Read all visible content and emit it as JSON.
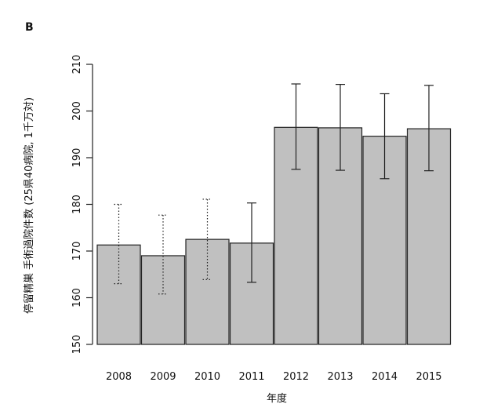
{
  "chart_data": {
    "type": "bar",
    "panel_label": "B",
    "xlabel": "年度",
    "ylabel": "停留精巣 手術過院件数 (25県40病院, 1千万対)",
    "ylim": [
      150,
      210
    ],
    "yticks": [
      150,
      160,
      170,
      180,
      190,
      200,
      210
    ],
    "categories": [
      "2008",
      "2009",
      "2010",
      "2011",
      "2012",
      "2013",
      "2014",
      "2015"
    ],
    "values": [
      171.3,
      169.0,
      172.5,
      171.7,
      196.5,
      196.4,
      194.6,
      196.2
    ],
    "error_low": [
      163.0,
      160.8,
      163.9,
      163.3,
      187.5,
      187.3,
      185.5,
      187.2
    ],
    "error_high": [
      180.0,
      177.7,
      181.1,
      180.3,
      205.8,
      205.7,
      203.7,
      205.5
    ],
    "error_style": [
      "dotted",
      "dotted",
      "dotted",
      "solid",
      "solid",
      "solid",
      "solid",
      "solid"
    ],
    "bar_color": "#c0c0c0",
    "bar_stroke": "#222222",
    "grid": false
  }
}
